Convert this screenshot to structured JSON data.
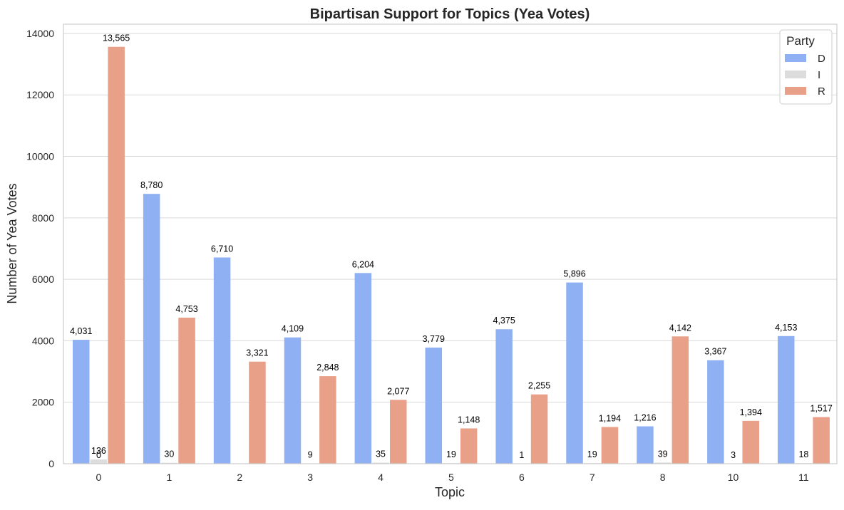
{
  "chart_data": {
    "type": "bar",
    "title": "Bipartisan Support for Topics (Yea Votes)",
    "xlabel": "Topic",
    "ylabel": "Number of Yea Votes",
    "categories": [
      "0",
      "1",
      "2",
      "3",
      "4",
      "5",
      "6",
      "7",
      "8",
      "10",
      "11"
    ],
    "ylim": [
      0,
      14300
    ],
    "yticks": [
      0,
      2000,
      4000,
      6000,
      8000,
      10000,
      12000,
      14000
    ],
    "grid": "horizontal",
    "legend": {
      "title": "Party",
      "placement": "top-right"
    },
    "series": [
      {
        "name": "D",
        "color": "#8fb0f2",
        "values": [
          4031,
          8780,
          6710,
          4109,
          6204,
          3779,
          4375,
          5896,
          1216,
          3367,
          4153
        ],
        "labels": [
          "4,031",
          "8,780",
          "6,710",
          "4,109",
          "6,204",
          "3,779",
          "4,375",
          "5,896",
          "1,216",
          "3,367",
          "4,153"
        ]
      },
      {
        "name": "I",
        "color": "#dcdcdc",
        "values": [
          136,
          30,
          null,
          9,
          35,
          19,
          1,
          19,
          39,
          3,
          18
        ],
        "labels": [
          "136",
          "30",
          null,
          "9",
          "35",
          "19",
          "1",
          "19",
          "39",
          "3",
          "18"
        ]
      },
      {
        "name": "R",
        "color": "#e8a088",
        "values": [
          13565,
          4753,
          3321,
          2848,
          2077,
          1148,
          2255,
          1194,
          4142,
          1394,
          1517
        ],
        "labels": [
          "13,565",
          "4,753",
          "3,321",
          "2,848",
          "2,077",
          "1,148",
          "2,255",
          "1,194",
          "4,142",
          "1,394",
          "1,517"
        ]
      }
    ],
    "annotations": [
      {
        "category": "0",
        "text": "0"
      }
    ]
  }
}
